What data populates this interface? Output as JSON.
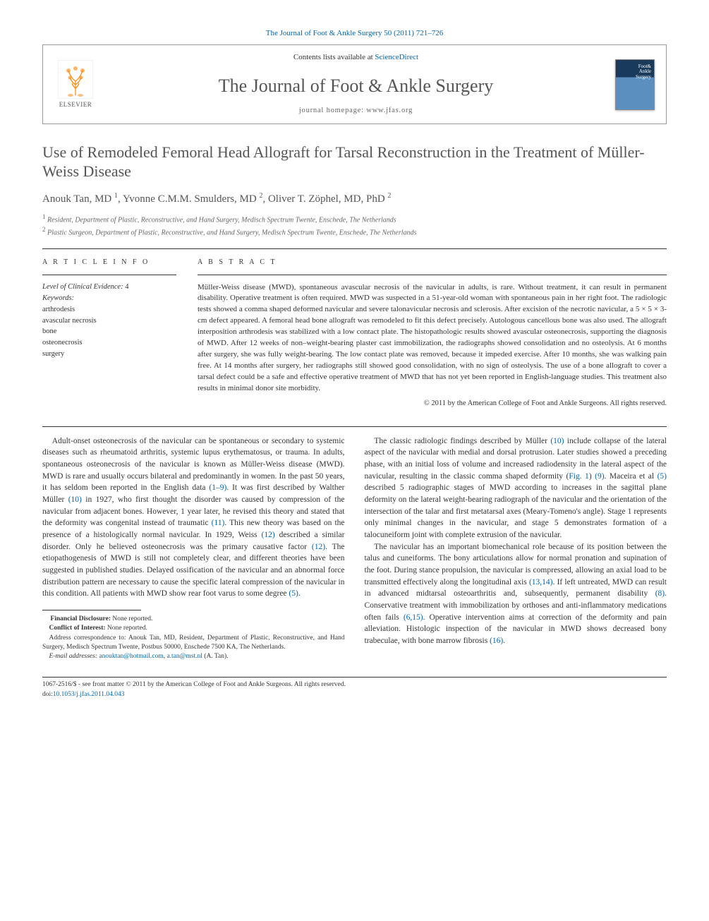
{
  "top_reference": "The Journal of Foot & Ankle Surgery 50 (2011) 721–726",
  "header": {
    "contents_prefix": "Contents lists available at ",
    "contents_link": "ScienceDirect",
    "journal_name": "The Journal of Foot & Ankle Surgery",
    "homepage_prefix": "journal homepage: ",
    "homepage_url": "www.jfas.org",
    "publisher_label": "ELSEVIER"
  },
  "article": {
    "title": "Use of Remodeled Femoral Head Allograft for Tarsal Reconstruction in the Treatment of Müller-Weiss Disease",
    "authors_html": "Anouk Tan, MD <sup>1</sup>, Yvonne C.M.M. Smulders, MD <sup>2</sup>, Oliver T. Zöphel, MD, PhD <sup>2</sup>",
    "affiliations": [
      "Resident, Department of Plastic, Reconstructive, and Hand Surgery, Medisch Spectrum Twente, Enschede, The Netherlands",
      "Plastic Surgeon, Department of Plastic, Reconstructive, and Hand Surgery, Medisch Spectrum Twente, Enschede, The Netherlands"
    ]
  },
  "info": {
    "section_label": "A R T I C L E  I N F O",
    "evidence_label": "Level of Clinical Evidence:",
    "evidence_value": "4",
    "keywords_label": "Keywords:",
    "keywords": [
      "arthrodesis",
      "avascular necrosis",
      "bone",
      "osteonecrosis",
      "surgery"
    ]
  },
  "abstract": {
    "section_label": "A B S T R A C T",
    "text": "Müller-Weiss disease (MWD), spontaneous avascular necrosis of the navicular in adults, is rare. Without treatment, it can result in permanent disability. Operative treatment is often required. MWD was suspected in a 51-year-old woman with spontaneous pain in her right foot. The radiologic tests showed a comma shaped deformed navicular and severe talonavicular necrosis and sclerosis. After excision of the necrotic navicular, a 5 × 5 × 3-cm defect appeared. A femoral head bone allograft was remodeled to fit this defect precisely. Autologous cancellous bone was also used. The allograft interposition arthrodesis was stabilized with a low contact plate. The histopathologic results showed avascular osteonecrosis, supporting the diagnosis of MWD. After 12 weeks of non–weight-bearing plaster cast immobilization, the radiographs showed consolidation and no osteolysis. At 6 months after surgery, she was fully weight-bearing. The low contact plate was removed, because it impeded exercise. After 10 months, she was walking pain free. At 14 months after surgery, her radiographs still showed good consolidation, with no sign of osteolysis. The use of a bone allograft to cover a tarsal defect could be a safe and effective operative treatment of MWD that has not yet been reported in English-language studies. This treatment also results in minimal donor site morbidity.",
    "copyright": "© 2011 by the American College of Foot and Ankle Surgeons. All rights reserved."
  },
  "body": {
    "p1": "Adult-onset osteonecrosis of the navicular can be spontaneous or secondary to systemic diseases such as rheumatoid arthritis, systemic lupus erythematosus, or trauma. In adults, spontaneous osteonecrosis of the navicular is known as Müller-Weiss disease (MWD). MWD is rare and usually occurs bilateral and predominantly in women. In the past 50 years, it has seldom been reported in the English data ",
    "p1_ref1": "(1–9)",
    "p1b": ". It was first described by Walther Müller ",
    "p1_ref2": "(10)",
    "p1c": " in 1927, who first thought the disorder was caused by compression of the navicular from adjacent bones. However, 1 year later, he revised this theory and stated that the deformity was congenital instead of traumatic ",
    "p1_ref3": "(11)",
    "p1d": ". This new theory was based on the presence of a histologically normal navicular. In 1929, Weiss ",
    "p1_ref4": "(12)",
    "p1e": " described a similar disorder. Only he believed osteonecrosis was the primary causative factor ",
    "p1_ref5": "(12)",
    "p1f": ". The etiopathogenesis of MWD is still not completely clear, and different theories have been suggested in published studies. Delayed ossification of the navicular and an abnormal force distribution pattern are necessary to cause the specific lateral compression of the navicular in this condition. All patients with MWD show rear foot varus to some degree ",
    "p1_ref6": "(5)",
    "p1g": ".",
    "p2a": "The classic radiologic findings described by Müller ",
    "p2_ref1": "(10)",
    "p2b": " include collapse of the lateral aspect of the navicular with medial and dorsal protrusion. Later studies showed a preceding phase, with an initial loss of volume and increased radiodensity in the lateral aspect of the navicular, resulting in the classic comma shaped deformity (",
    "p2_fig": "Fig. 1",
    "p2c": ") ",
    "p2_ref2": "(9)",
    "p2d": ". Maceira et al ",
    "p2_ref3": "(5)",
    "p2e": " described 5 radiographic stages of MWD according to increases in the sagittal plane deformity on the lateral weight-bearing radiograph of the navicular and the orientation of the intersection of the talar and first metatarsal axes (Meary-Tomeno's angle). Stage 1 represents only minimal changes in the navicular, and stage 5 demonstrates formation of a talocuneiform joint with complete extrusion of the navicular.",
    "p3a": "The navicular has an important biomechanical role because of its position between the talus and cuneiforms. The bony articulations allow for normal pronation and supination of the foot. During stance propulsion, the navicular is compressed, allowing an axial load to be transmitted effectively along the longitudinal axis ",
    "p3_ref1": "(13,14)",
    "p3b": ". If left untreated, MWD can result in advanced midtarsal osteoarthritis and, subsequently, permanent disability ",
    "p3_ref2": "(8)",
    "p3c": ". Conservative treatment with immobilization by orthoses and anti-inflammatory medications often fails ",
    "p3_ref3": "(6,15)",
    "p3d": ". Operative intervention aims at correction of the deformity and pain alleviation. Histologic inspection of the navicular in MWD shows decreased bony trabeculae, with bone marrow fibrosis ",
    "p3_ref4": "(16)",
    "p3e": "."
  },
  "footnotes": {
    "fd_label": "Financial Disclosure:",
    "fd_value": "None reported.",
    "coi_label": "Conflict of Interest:",
    "coi_value": "None reported.",
    "corr": "Address correspondence to: Anouk Tan, MD, Resident, Department of Plastic, Reconstructive, and Hand Surgery, Medisch Spectrum Twente, Postbus 50000, Enschede 7500 KA, The Netherlands.",
    "email_label": "E-mail addresses:",
    "email1": "anouktan@hotmail.com",
    "email2": "a.tan@mst.nl",
    "email_suffix": "(A. Tan)."
  },
  "bottom": {
    "line1_prefix": "1067-2516/$ - see front matter © 2011 by the American College of Foot and Ankle Surgeons. All rights reserved.",
    "doi_label": "doi:",
    "doi": "10.1053/j.jfas.2011.04.043"
  },
  "colors": {
    "link": "#0066b3",
    "text": "#333333",
    "heading": "#555555",
    "orange": "#ff8200"
  }
}
